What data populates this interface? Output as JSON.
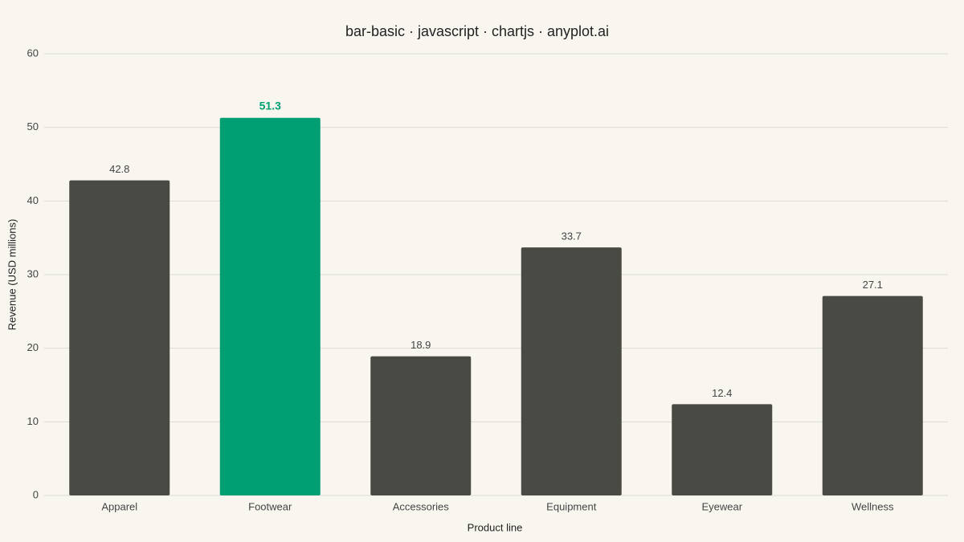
{
  "chart_data": {
    "type": "bar",
    "title": "bar-basic · javascript · chartjs · anyplot.ai",
    "x_label": "Product line",
    "y_label": "Revenue (USD millions)",
    "categories": [
      "Apparel",
      "Footwear",
      "Accessories",
      "Equipment",
      "Eyewear",
      "Wellness"
    ],
    "values": [
      42.8,
      51.3,
      18.9,
      33.7,
      12.4,
      27.1
    ],
    "colors": [
      "#4a4a44",
      "#009e73",
      "#4a4a44",
      "#4a4a44",
      "#4a4a44",
      "#4a4a44"
    ],
    "highlight_color": "#009e73",
    "ylim": [
      0,
      60
    ],
    "yticks": [
      0,
      10,
      20,
      30,
      40,
      50,
      60
    ],
    "grid": true
  }
}
